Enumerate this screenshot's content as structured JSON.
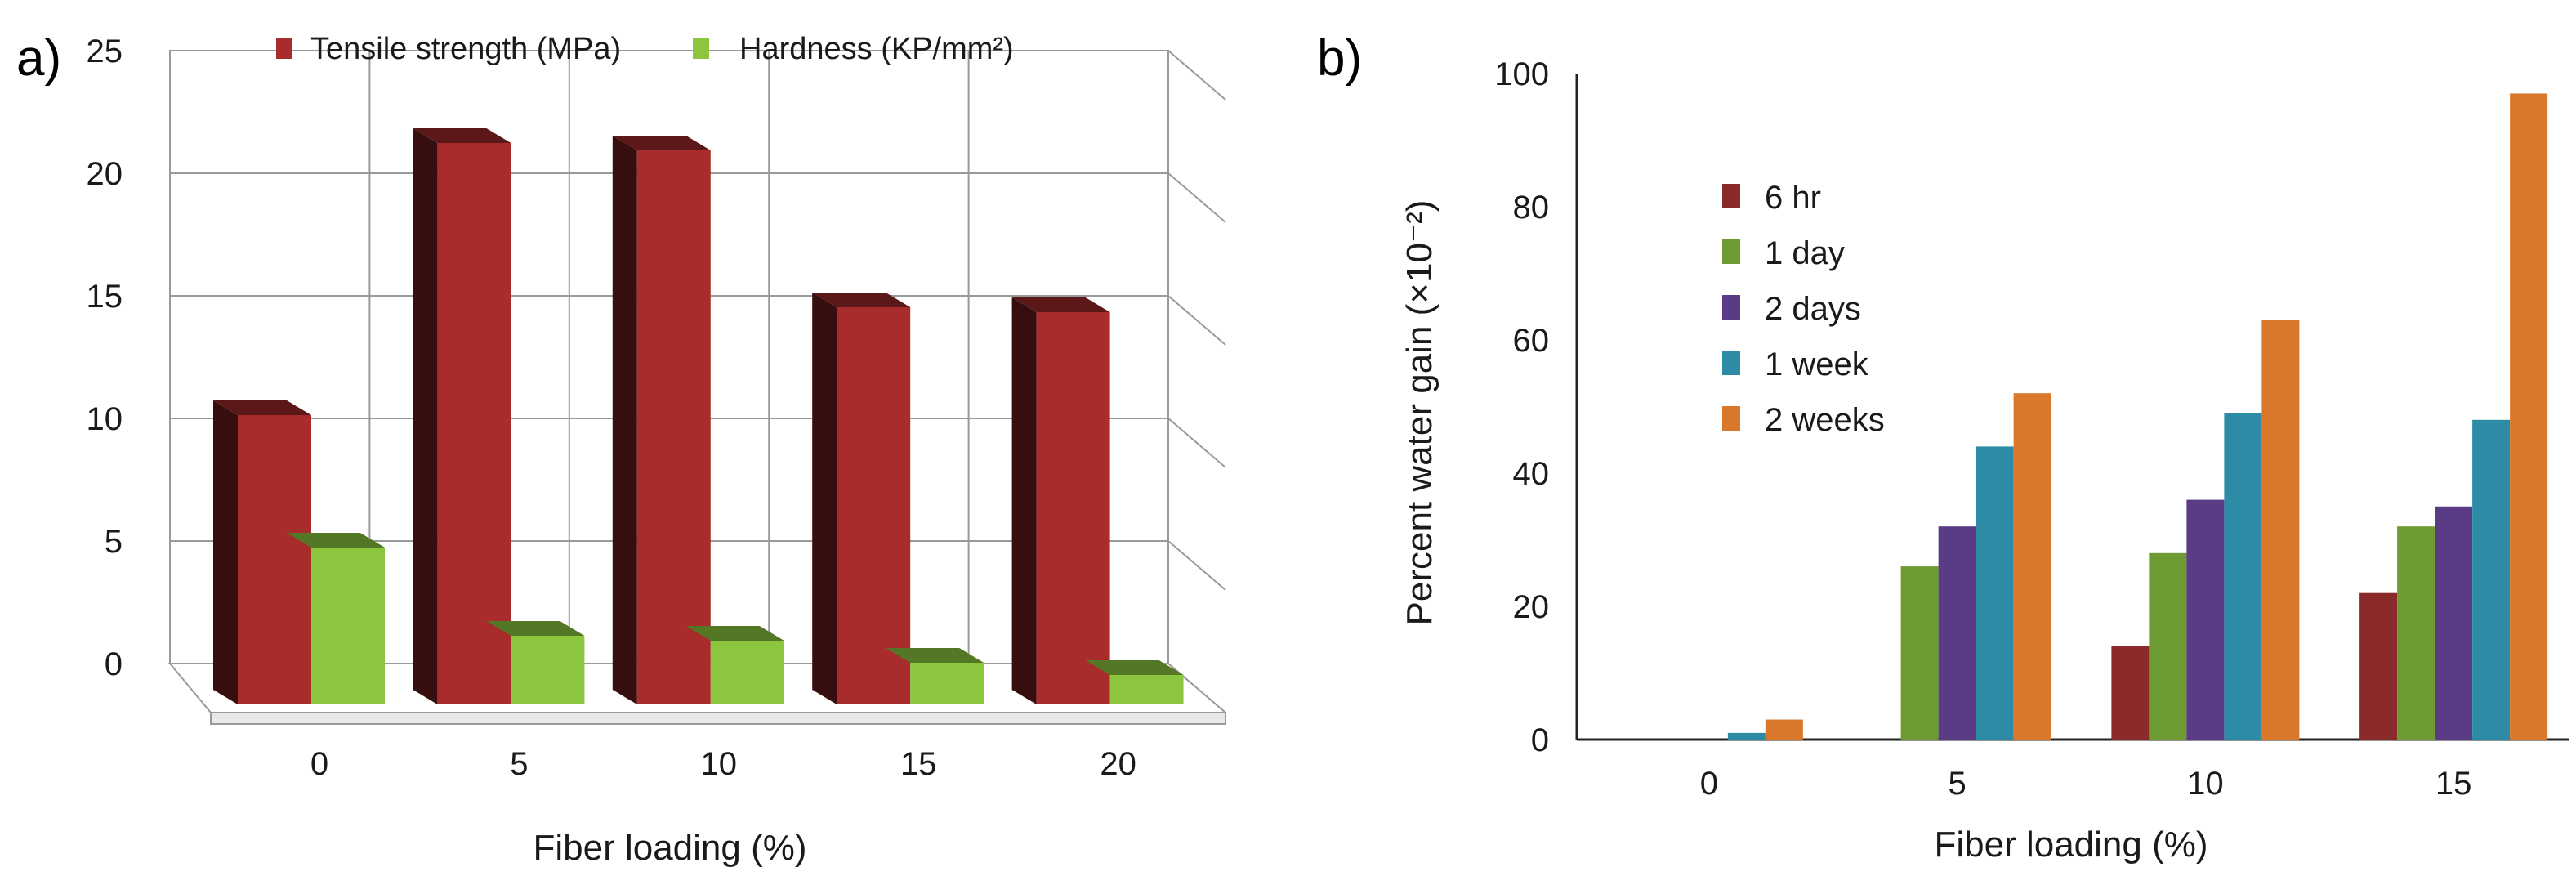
{
  "chart_data": [
    {
      "panel": "a)",
      "type": "bar",
      "style": "3d",
      "categories": [
        "0",
        "5",
        "10",
        "15",
        "20"
      ],
      "series": [
        {
          "name": "Tensile strength (MPa)",
          "color": "#a82c2c",
          "values": [
            11.8,
            22.9,
            22.6,
            16.2,
            16.0
          ]
        },
        {
          "name": "Hardness (KP/mm²)",
          "color": "#8cc63f",
          "values": [
            6.4,
            2.8,
            2.6,
            1.7,
            1.2
          ]
        }
      ],
      "yticks": [
        "0",
        "5",
        "10",
        "15",
        "20",
        "25"
      ],
      "ylim": [
        0,
        25
      ],
      "xlabel": "Fiber loading (%)",
      "ylabel": "",
      "legend": "top",
      "grid": true
    },
    {
      "panel": "b)",
      "type": "bar",
      "categories": [
        "0",
        "5",
        "10",
        "15"
      ],
      "series": [
        {
          "name": "6 hr",
          "color": "#8b2a2a",
          "values": [
            0,
            0,
            14,
            22
          ]
        },
        {
          "name": "1 day",
          "color": "#6e9a34",
          "values": [
            0,
            26,
            28,
            32
          ]
        },
        {
          "name": "2 days",
          "color": "#5a3b86",
          "values": [
            0,
            32,
            36,
            35
          ]
        },
        {
          "name": "1 week",
          "color": "#2e8ba6",
          "values": [
            1,
            44,
            49,
            48
          ]
        },
        {
          "name": "2 weeks",
          "color": "#d9782a",
          "values": [
            3,
            52,
            63,
            97
          ]
        }
      ],
      "yticks": [
        "0",
        "20",
        "40",
        "60",
        "80",
        "100"
      ],
      "ylim": [
        0,
        100
      ],
      "xlabel": "Fiber loading (%)",
      "ylabel": "Percent water gain (×10⁻²)",
      "legend": "upper-left",
      "grid": false
    }
  ]
}
